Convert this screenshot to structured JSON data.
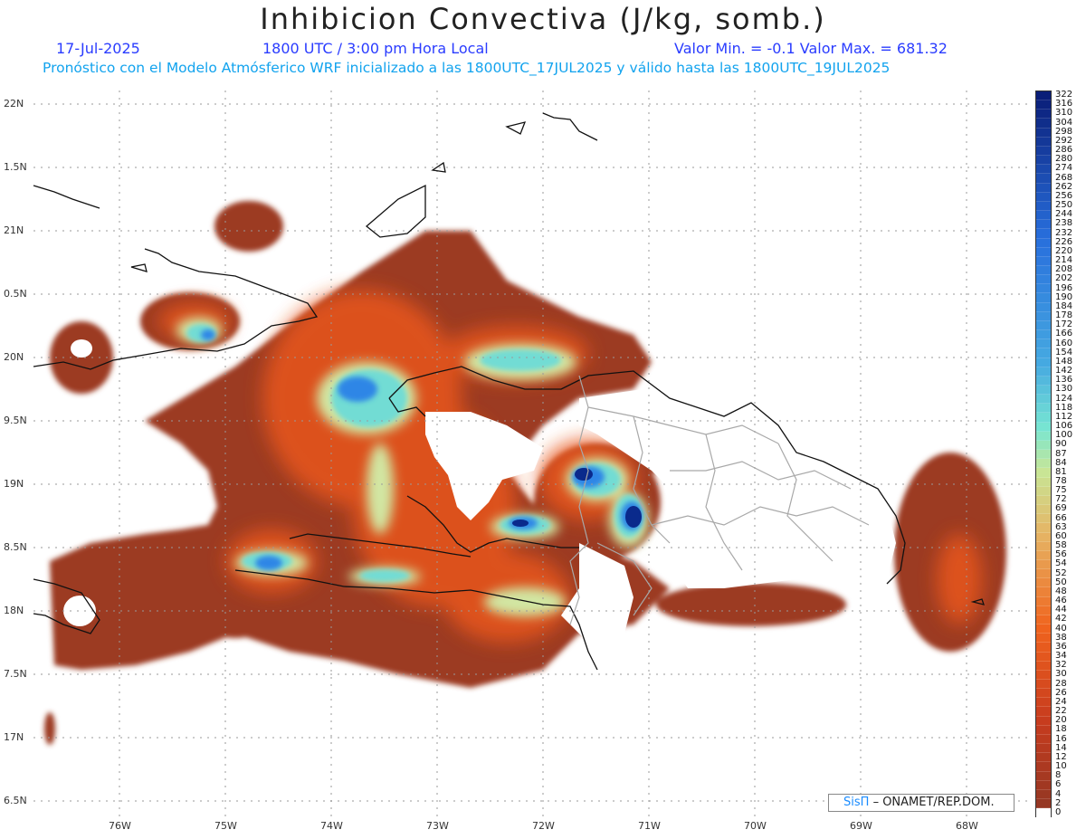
{
  "header": {
    "title": "Inhibicion Convectiva (J/kg, somb.)",
    "date": "17-Jul-2025",
    "time": "1800 UTC / 3:00 pm Hora Local",
    "min_max": "Valor Min. = -0.1   Valor Max. = 681.32",
    "description": "Pronóstico con el Modelo Atmósferico WRF inicializado a las 1800UTC_17JUL2025 y válido hasta las  1800UTC_19JUL2025"
  },
  "axes": {
    "lat_labels": [
      "22N",
      "1.5N",
      "21N",
      "0.5N",
      "20N",
      "9.5N",
      "19N",
      "8.5N",
      "18N",
      "7.5N",
      "17N",
      "6.5N"
    ],
    "lon_labels": [
      "76W",
      "75W",
      "74W",
      "73W",
      "72W",
      "71W",
      "70W",
      "69W",
      "68W"
    ]
  },
  "colorbar": {
    "labels": [
      "322",
      "316",
      "310",
      "304",
      "298",
      "292",
      "286",
      "280",
      "274",
      "268",
      "262",
      "256",
      "250",
      "244",
      "238",
      "232",
      "226",
      "220",
      "214",
      "208",
      "202",
      "196",
      "190",
      "184",
      "178",
      "172",
      "166",
      "160",
      "154",
      "148",
      "142",
      "136",
      "130",
      "124",
      "118",
      "112",
      "106",
      "100",
      "90",
      "87",
      "84",
      "81",
      "78",
      "75",
      "72",
      "69",
      "66",
      "63",
      "60",
      "58",
      "56",
      "54",
      "52",
      "50",
      "48",
      "46",
      "44",
      "42",
      "40",
      "38",
      "36",
      "34",
      "32",
      "30",
      "28",
      "26",
      "24",
      "22",
      "20",
      "18",
      "16",
      "14",
      "12",
      "10",
      "8",
      "6",
      "4",
      "2",
      "0"
    ],
    "colors": {
      "low": "#9b3a22",
      "mid_orange": "#ef5a10",
      "yellow_green": "#d8e8a0",
      "cyan": "#7be8d8",
      "blue": "#2f8ce8",
      "dark_blue": "#0a2a90"
    }
  },
  "credit": {
    "brand": "SisΠ",
    "text": "– ONAMET/REP.DOM."
  }
}
